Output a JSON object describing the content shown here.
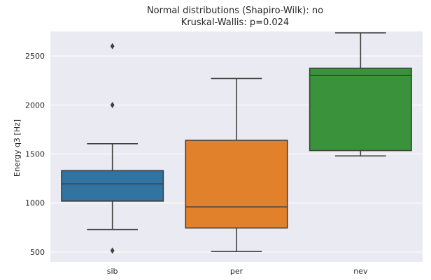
{
  "chart_data": {
    "type": "box",
    "title": [
      "Normal distributions (Shapiro-Wilk): no",
      "Kruskal-Wallis: p=0.024"
    ],
    "xlabel": "",
    "ylabel": "Energy q3 [Hz]",
    "categories": [
      "sib",
      "per",
      "nev"
    ],
    "ylim": [
      400,
      2750
    ],
    "yticks": [
      500,
      1000,
      1500,
      2000,
      2500
    ],
    "grid": true,
    "boxes": [
      {
        "category": "sib",
        "color": "#3274a1",
        "whisker_low": 730,
        "q1": 1020,
        "median": 1195,
        "q3": 1330,
        "whisker_high": 1605,
        "outliers": [
          2600,
          2000,
          515
        ]
      },
      {
        "category": "per",
        "color": "#e1812c",
        "whisker_low": 505,
        "q1": 745,
        "median": 960,
        "q3": 1640,
        "whisker_high": 2270,
        "outliers": []
      },
      {
        "category": "nev",
        "color": "#3a923a",
        "whisker_low": 1480,
        "q1": 1535,
        "median": 2300,
        "q3": 2375,
        "whisker_high": 2735,
        "outliers": []
      }
    ]
  },
  "colors": {
    "background": "#eaeaf2",
    "grid": "#ffffff",
    "line": "#3f3f3f"
  }
}
